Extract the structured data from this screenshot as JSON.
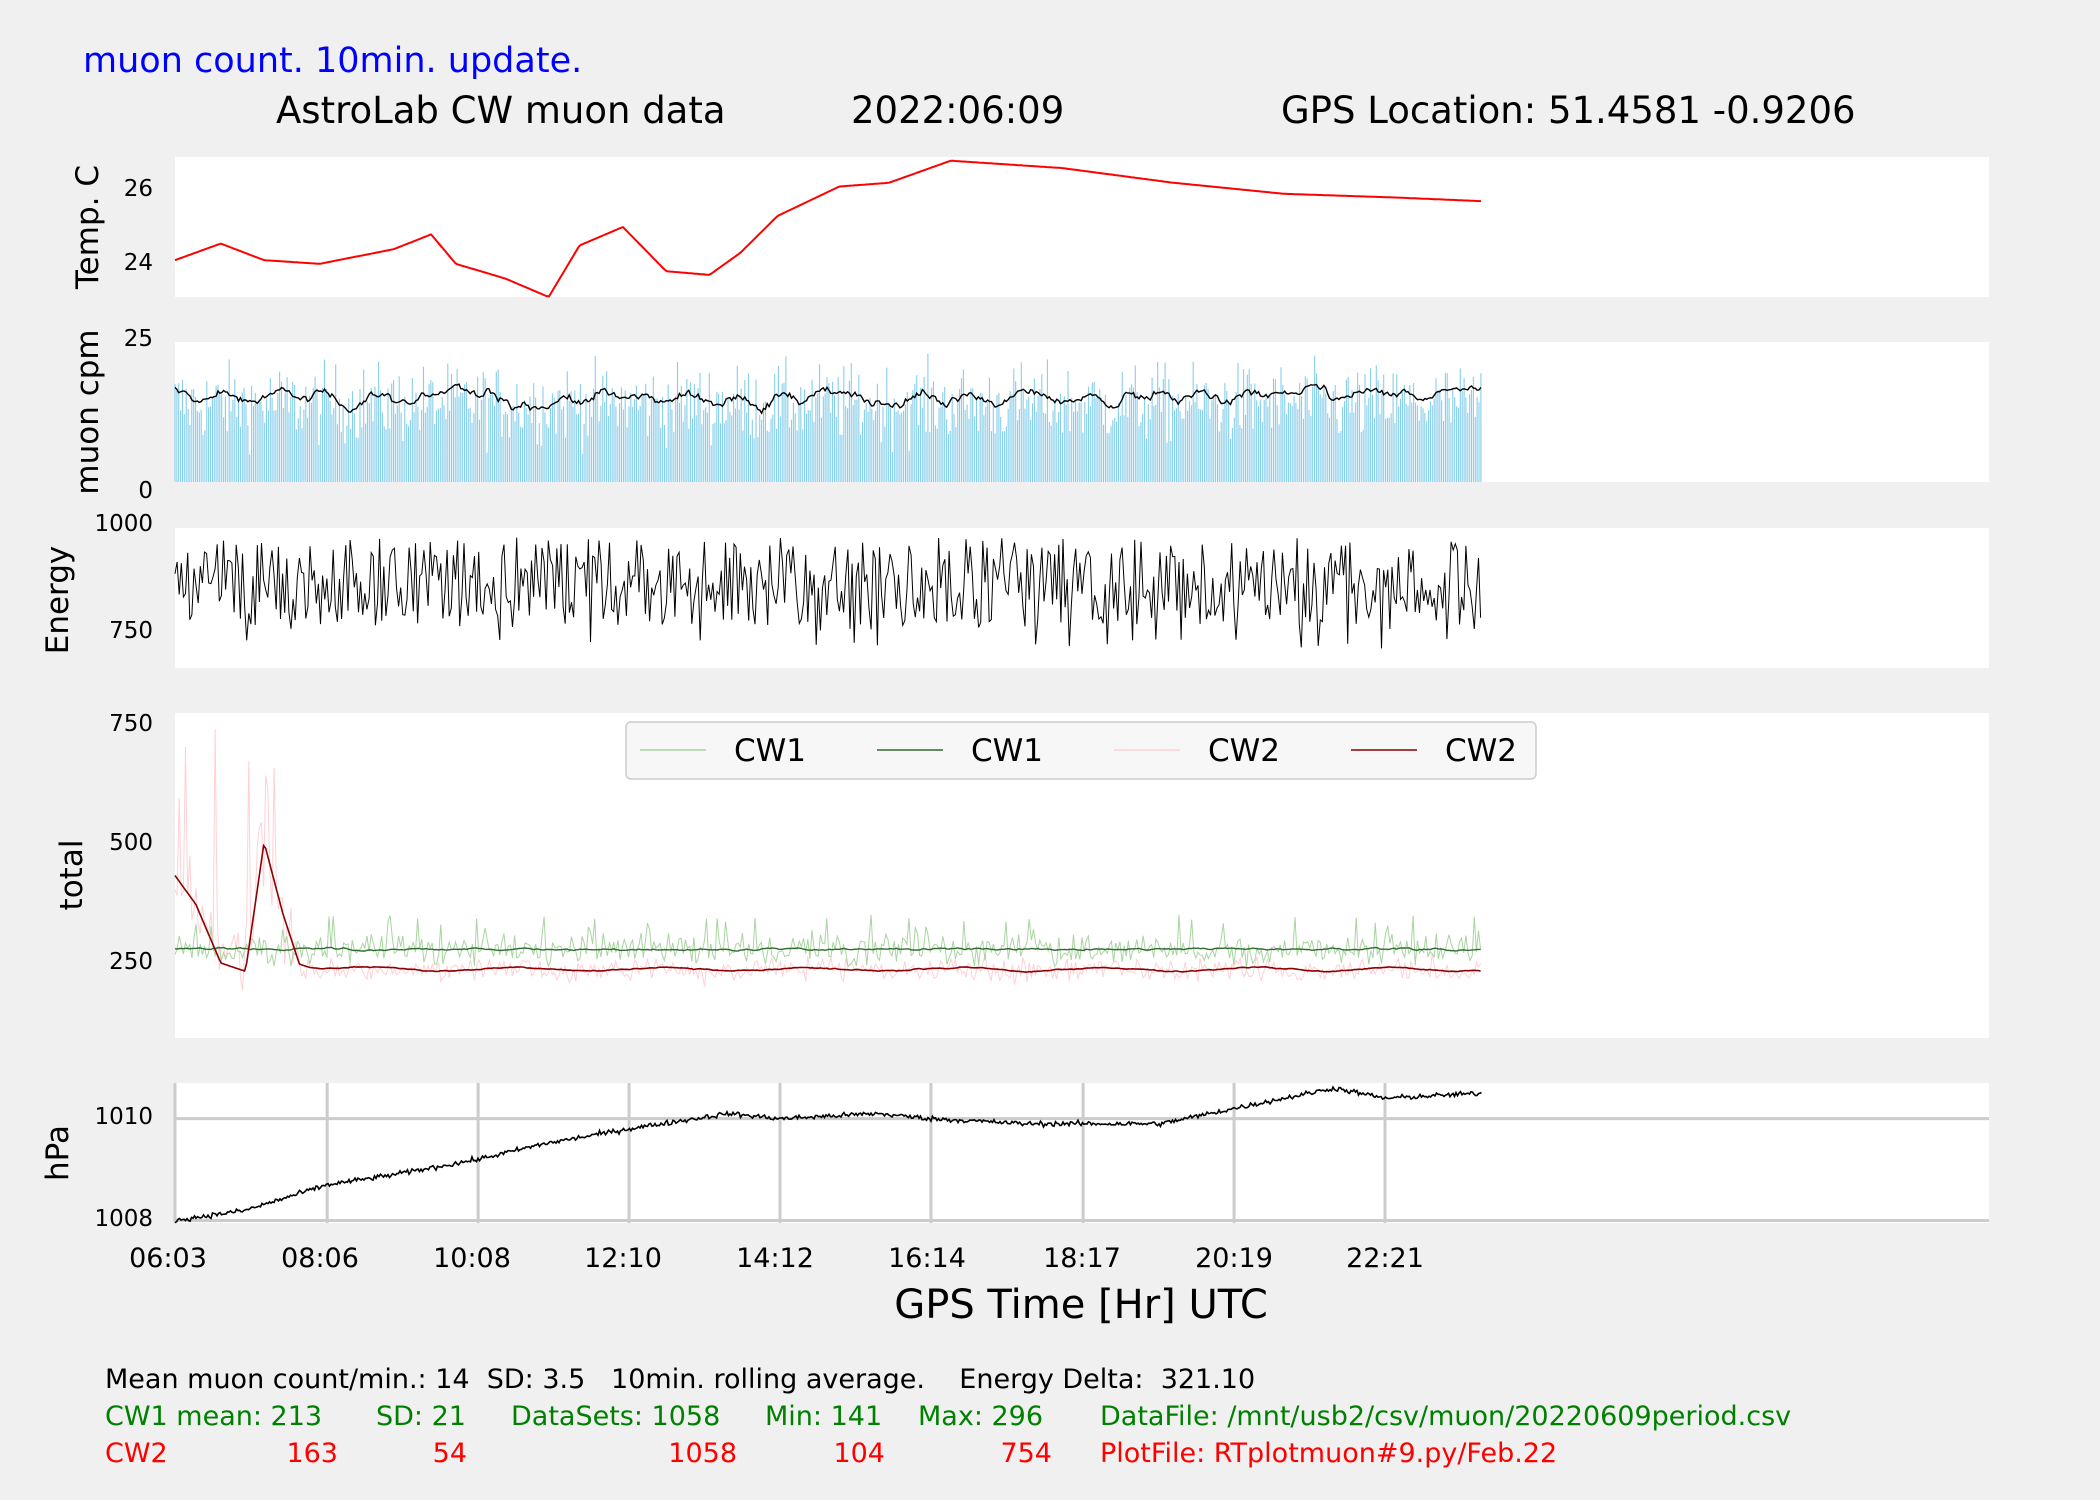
{
  "header": {
    "update_note": "muon count.  10min. update.",
    "title": "AstroLab CW muon data",
    "date": "2022:06:09",
    "gps": "GPS Location: 51.4581   -0.9206"
  },
  "colors": {
    "background": "#f0f0f0",
    "temp": "#ff0000",
    "bars": "#87ceeb",
    "black": "#000000",
    "cw1_raw": "#a8d5a0",
    "cw1_avg": "#2f6b2f",
    "cw2_raw": "#ffd0d6",
    "cw2_avg": "#8b0000",
    "footer_black": "#000000",
    "footer_green": "#008000",
    "footer_red": "#ff0000",
    "title_blue": "#0000ff"
  },
  "chart_data": [
    {
      "type": "line",
      "panel": "temperature",
      "ylabel": "Temp. C",
      "yticks": [
        24,
        26
      ],
      "ylim": [
        23.0,
        26.8
      ],
      "x": [
        "06:03",
        "06:40",
        "07:15",
        "08:00",
        "09:00",
        "09:30",
        "09:50",
        "10:30",
        "11:05",
        "11:30",
        "12:05",
        "12:40",
        "13:15",
        "13:40",
        "14:10",
        "15:00",
        "15:40",
        "16:30",
        "18:00",
        "19:30",
        "21:00",
        "22:30",
        "23:40"
      ],
      "series": [
        {
          "values": [
            24.0,
            24.45,
            24.0,
            23.9,
            24.3,
            24.7,
            23.9,
            23.5,
            23.0,
            24.4,
            24.9,
            23.7,
            23.6,
            24.2,
            25.2,
            26.0,
            26.1,
            26.7,
            26.5,
            26.1,
            25.8,
            25.7,
            25.6
          ]
        }
      ]
    },
    {
      "type": "bar",
      "panel": "muon cpm",
      "ylabel": "muon cpm",
      "yticks": [
        0,
        25
      ],
      "ylim": [
        0,
        25
      ],
      "mean": 14,
      "sd": 3.5,
      "rolling_average": "10min"
    },
    {
      "type": "line",
      "panel": "energy",
      "ylabel": "Energy",
      "yticks": [
        750,
        1000
      ],
      "ylim": [
        660,
        1020
      ],
      "range": [
        710,
        995
      ]
    },
    {
      "type": "line",
      "panel": "total",
      "ylabel": "total",
      "yticks": [
        250,
        500,
        750
      ],
      "ylim": [
        0,
        780
      ],
      "legend": [
        "CW1",
        "CW1",
        "CW2",
        "CW2"
      ],
      "legend_position": "top",
      "cw1": {
        "mean": 213,
        "sd": 21,
        "datasets": 1058,
        "min": 141,
        "max": 296
      },
      "cw2": {
        "mean": 163,
        "sd": 54,
        "datasets": 1058,
        "min": 104,
        "max": 754
      },
      "cw2_early": {
        "x": [
          "06:03",
          "06:20",
          "06:40",
          "07:00",
          "07:15",
          "07:30",
          "07:45"
        ],
        "values": [
          390,
          320,
          180,
          160,
          470,
          300,
          165
        ]
      }
    },
    {
      "type": "line",
      "panel": "pressure",
      "ylabel": "hPa",
      "yticks": [
        1008,
        1010
      ],
      "ylim": [
        1007.95,
        1010.7
      ],
      "grid": true,
      "x": [
        "06:03",
        "07:00",
        "08:06",
        "09:00",
        "10:08",
        "11:00",
        "12:10",
        "13:30",
        "14:12",
        "15:30",
        "16:14",
        "17:30",
        "18:17",
        "19:20",
        "20:19",
        "21:40",
        "22:21",
        "23:40"
      ],
      "series": [
        {
          "values": [
            1008.0,
            1008.2,
            1008.7,
            1008.9,
            1009.2,
            1009.5,
            1009.8,
            1010.1,
            1010.0,
            1010.1,
            1010.0,
            1009.9,
            1009.9,
            1009.9,
            1010.2,
            1010.6,
            1010.4,
            1010.5
          ]
        }
      ]
    }
  ],
  "x_axis": {
    "ticks": [
      "06:03",
      "08:06",
      "10:08",
      "12:10",
      "14:12",
      "16:14",
      "18:17",
      "20:19",
      "22:21"
    ],
    "label": "GPS Time  [Hr] UTC"
  },
  "footer": {
    "line1": "Mean muon count/min.: 14  SD: 3.5   10min. rolling average.    Energy Delta:  321.10",
    "cw1": {
      "label": "CW1 mean: 213",
      "sd": "SD: 21",
      "datasets": "DataSets: 1058",
      "min": "Min: 141",
      "max": "Max: 296",
      "file": "DataFile: /mnt/usb2/csv/muon/20220609period.csv"
    },
    "cw2": {
      "label": "CW2",
      "mean": "163",
      "sd": "54",
      "datasets": "1058",
      "min": "104",
      "max": "754",
      "file": "PlotFile: RTplotmuon#9.py/Feb.22"
    }
  }
}
